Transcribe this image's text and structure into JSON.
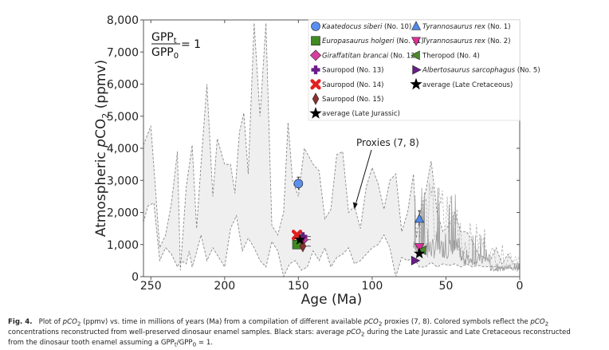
{
  "chart_data": {
    "type": "scatter",
    "title": "",
    "xlabel": "Age (Ma)",
    "ylabel": "Atmospheric pCO2 (ppmv)",
    "xlim": [
      255,
      0
    ],
    "ylim": [
      0,
      8000
    ],
    "x_reversed": true,
    "x_ticks": [
      250,
      200,
      150,
      100,
      50,
      0
    ],
    "y_ticks": [
      0,
      1000,
      2000,
      3000,
      4000,
      5000,
      6000,
      7000,
      8000
    ],
    "x_tick_labels": [
      "250",
      "200",
      "150",
      "100",
      "50",
      "0"
    ],
    "y_tick_labels": [
      "0",
      "1,000",
      "2,000",
      "3,000",
      "4,000",
      "5,000",
      "6,000",
      "7,000",
      "8,000"
    ],
    "grid": false,
    "legend_position": "top-right",
    "inset_label": {
      "numerator": "GPP",
      "numerator_sub": "t",
      "denominator": "GPP",
      "denominator_sub": "0",
      "equals": "= 1"
    },
    "annotation": {
      "text": "Proxies (7, 8)",
      "points_to": [
        112,
        2100
      ]
    },
    "proxy_envelope": {
      "name": "Proxies (7, 8)",
      "upper": [
        [
          255,
          4100
        ],
        [
          250,
          4700
        ],
        [
          244,
          900
        ],
        [
          240,
          1300
        ],
        [
          236,
          2300
        ],
        [
          232,
          3900
        ],
        [
          230,
          200
        ],
        [
          226,
          2800
        ],
        [
          222,
          4100
        ],
        [
          219,
          1500
        ],
        [
          216,
          3500
        ],
        [
          212,
          6000
        ],
        [
          208,
          2500
        ],
        [
          205,
          4300
        ],
        [
          200,
          3500
        ],
        [
          196,
          3500
        ],
        [
          193,
          2600
        ],
        [
          190,
          4500
        ],
        [
          187,
          5100
        ],
        [
          184,
          3200
        ],
        [
          180,
          7900
        ],
        [
          176,
          5000
        ],
        [
          172,
          7900
        ],
        [
          168,
          1600
        ],
        [
          164,
          1300
        ],
        [
          160,
          2000
        ],
        [
          157,
          4800
        ],
        [
          154,
          3000
        ],
        [
          150,
          2500
        ],
        [
          146,
          4000
        ],
        [
          140,
          3500
        ],
        [
          136,
          3300
        ],
        [
          132,
          1800
        ],
        [
          128,
          2100
        ],
        [
          124,
          3800
        ],
        [
          120,
          3900
        ],
        [
          116,
          2000
        ],
        [
          112,
          2200
        ],
        [
          108,
          1500
        ],
        [
          104,
          2800
        ],
        [
          100,
          3400
        ],
        [
          96,
          2900
        ],
        [
          92,
          2100
        ],
        [
          88,
          3000
        ],
        [
          84,
          3200
        ],
        [
          80,
          1400
        ],
        [
          76,
          2000
        ],
        [
          72,
          3200
        ],
        [
          70,
          1200
        ],
        [
          68,
          1900
        ],
        [
          64,
          2600
        ],
        [
          60,
          3600
        ],
        [
          56,
          2000
        ],
        [
          52,
          1400
        ],
        [
          48,
          1600
        ],
        [
          44,
          2000
        ],
        [
          40,
          1400
        ],
        [
          36,
          1400
        ],
        [
          32,
          1100
        ],
        [
          28,
          700
        ],
        [
          24,
          600
        ],
        [
          20,
          500
        ],
        [
          16,
          900
        ],
        [
          12,
          400
        ],
        [
          8,
          700
        ],
        [
          4,
          400
        ],
        [
          0,
          400
        ]
      ],
      "lower": [
        [
          0,
          250
        ],
        [
          4,
          280
        ],
        [
          8,
          270
        ],
        [
          12,
          260
        ],
        [
          16,
          300
        ],
        [
          20,
          320
        ],
        [
          24,
          300
        ],
        [
          28,
          350
        ],
        [
          32,
          300
        ],
        [
          36,
          400
        ],
        [
          40,
          300
        ],
        [
          44,
          400
        ],
        [
          48,
          350
        ],
        [
          52,
          400
        ],
        [
          56,
          300
        ],
        [
          60,
          450
        ],
        [
          64,
          300
        ],
        [
          68,
          300
        ],
        [
          72,
          600
        ],
        [
          76,
          500
        ],
        [
          80,
          600
        ],
        [
          84,
          0
        ],
        [
          88,
          900
        ],
        [
          92,
          1300
        ],
        [
          96,
          1000
        ],
        [
          100,
          900
        ],
        [
          104,
          700
        ],
        [
          108,
          500
        ],
        [
          112,
          400
        ],
        [
          116,
          900
        ],
        [
          120,
          700
        ],
        [
          124,
          600
        ],
        [
          128,
          300
        ],
        [
          132,
          900
        ],
        [
          136,
          500
        ],
        [
          140,
          800
        ],
        [
          144,
          300
        ],
        [
          148,
          200
        ],
        [
          152,
          500
        ],
        [
          156,
          400
        ],
        [
          160,
          0
        ],
        [
          164,
          800
        ],
        [
          168,
          1100
        ],
        [
          172,
          300
        ],
        [
          176,
          500
        ],
        [
          180,
          900
        ],
        [
          184,
          1200
        ],
        [
          188,
          800
        ],
        [
          192,
          1900
        ],
        [
          196,
          1500
        ],
        [
          200,
          300
        ],
        [
          204,
          600
        ],
        [
          208,
          900
        ],
        [
          212,
          500
        ],
        [
          216,
          1300
        ],
        [
          220,
          600
        ],
        [
          222,
          300
        ],
        [
          224,
          800
        ],
        [
          226,
          400
        ],
        [
          230,
          500
        ],
        [
          232,
          300
        ],
        [
          236,
          700
        ],
        [
          240,
          900
        ],
        [
          244,
          500
        ],
        [
          248,
          2300
        ],
        [
          252,
          2200
        ],
        [
          255,
          1700
        ]
      ]
    },
    "series": [
      {
        "name": "Kaatedocus siberi (No. 10)",
        "italic_part": "Kaatedocus siberi",
        "plain_part": " (No. 10)",
        "marker": "circle",
        "color": "#5b8ff0",
        "points": [
          [
            150,
            2900
          ]
        ],
        "yerr": 200
      },
      {
        "name": "Europasaurus holgeri (No. 11)",
        "italic_part": "Europasaurus holgeri",
        "plain_part": " (No. 11)",
        "marker": "square",
        "color": "#3f8a22",
        "points": [
          [
            151,
            1000
          ]
        ],
        "yerr": 0
      },
      {
        "name": "Giraffatitan brancai (No. 12)",
        "italic_part": "Giraffatitan brancai",
        "plain_part": " (No. 12)",
        "marker": "diamond",
        "color": "#d63fa0",
        "points": [
          [
            147,
            1150
          ]
        ],
        "yerr": 0
      },
      {
        "name": "Sauropod (No. 13)",
        "italic_part": "",
        "plain_part": "Sauropod (No. 13)",
        "marker": "plus",
        "color": "#6a1c8a",
        "points": [
          [
            147,
            1250
          ]
        ],
        "yerr": 0
      },
      {
        "name": "Sauropod (No. 14)",
        "italic_part": "",
        "plain_part": "Sauropod (No. 14)",
        "marker": "x",
        "color": "#e02020",
        "points": [
          [
            151,
            1300
          ]
        ],
        "yerr": 0
      },
      {
        "name": "Sauropod (No. 15)",
        "italic_part": "",
        "plain_part": "Sauropod (No. 15)",
        "marker": "thin_diamond",
        "color": "#8b3030",
        "points": [
          [
            147,
            950
          ]
        ],
        "yerr": 0
      },
      {
        "name": "average (Late Jurassic)",
        "italic_part": "",
        "plain_part": "average (Late Jurassic)",
        "marker": "star",
        "color": "#000000",
        "points": [
          [
            149,
            1150
          ]
        ],
        "yerr": 0
      },
      {
        "name": "Tyrannosaurus rex (No. 1)",
        "italic_part": "Tyrannosaurus rex",
        "plain_part": " (No. 1)",
        "marker": "triangle_up",
        "color": "#4f88e8",
        "points": [
          [
            68,
            1800
          ]
        ],
        "yerr": 250
      },
      {
        "name": "Tyrannosaurus rex (No. 2)",
        "italic_part": "Tyrannosaurus rex",
        "plain_part": " (No. 2)",
        "marker": "triangle_down",
        "color": "#e0309a",
        "points": [
          [
            68,
            920
          ]
        ],
        "yerr": 0
      },
      {
        "name": "Theropod (No. 4)",
        "italic_part": "",
        "plain_part": "Theropod (No. 4)",
        "marker": "triangle_left",
        "color": "#4a8a2a",
        "points": [
          [
            66,
            820
          ]
        ],
        "yerr": 0
      },
      {
        "name": "Albertosaurus sarcophagus (No. 5)",
        "italic_part": "Albertosaurus sarcophagus",
        "plain_part": " (No. 5)",
        "marker": "triangle_right",
        "color": "#6a1c8a",
        "points": [
          [
            71,
            500
          ]
        ],
        "yerr": 0
      },
      {
        "name": "average (Late Cretaceous)",
        "italic_part": "",
        "plain_part": "average (Late Cretaceous)",
        "marker": "star",
        "color": "#000000",
        "points": [
          [
            68,
            720
          ]
        ],
        "yerr": 0
      }
    ]
  },
  "caption": {
    "label": "Fig. 4.",
    "line1a": "Plot of ",
    "line1b": "pCO",
    "line1c": "2",
    "line1d": " (ppmv) vs. time  in millions of years  (Ma) from a compilation  of different available ",
    "line1e": "pCO",
    "line1f": "2",
    "line1g": " proxies (7,  8). Colored symbols reflect  the ",
    "line1h": "pCO",
    "line1i": "2",
    "line2a": "concentrations reconstructed from well-preserved dinosaur enamel samples. Black stars: average ",
    "line2b": "pCO",
    "line2c": "2",
    "line2d": " during the Late Jurassic and Late Cretaceous reconstructed",
    "line3a": "from the dinosaur tooth enamel assuming a GPP",
    "line3b": "t",
    "line3c": "/GPP",
    "line3d": "0",
    "line3e": " = 1."
  }
}
